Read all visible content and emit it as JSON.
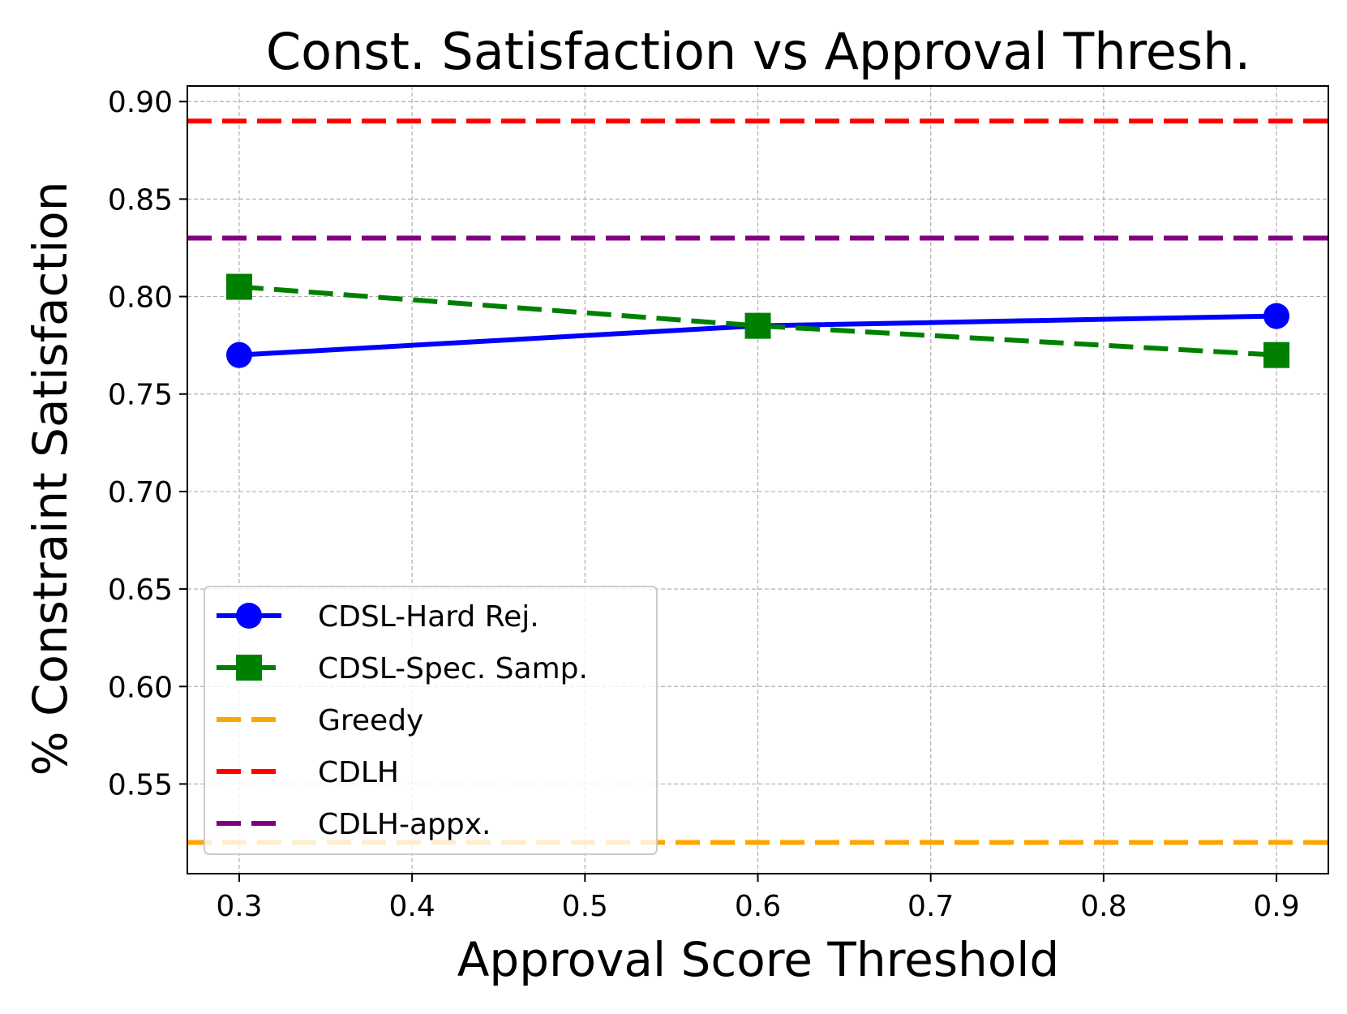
{
  "chart_data": {
    "type": "line",
    "title": "Const. Satisfaction vs Approval Thresh.",
    "xlabel": "Approval Score Threshold",
    "ylabel": "% Constraint Satisfaction",
    "xlim": [
      0.27,
      0.93
    ],
    "ylim": [
      0.504,
      0.908
    ],
    "x_ticks": [
      0.3,
      0.4,
      0.5,
      0.6,
      0.7,
      0.8,
      0.9
    ],
    "x_tick_labels": [
      "0.3",
      "0.4",
      "0.5",
      "0.6",
      "0.7",
      "0.8",
      "0.9"
    ],
    "y_ticks": [
      0.55,
      0.6,
      0.65,
      0.7,
      0.75,
      0.8,
      0.85,
      0.9
    ],
    "y_tick_labels": [
      "0.55",
      "0.60",
      "0.65",
      "0.70",
      "0.75",
      "0.80",
      "0.85",
      "0.90"
    ],
    "grid": true,
    "legend_position": "lower-left",
    "series": [
      {
        "name": "CDSL-Hard Rej.",
        "kind": "line",
        "x": [
          0.3,
          0.6,
          0.9
        ],
        "values": [
          0.77,
          0.785,
          0.79
        ],
        "color": "#0000ff",
        "linestyle": "solid",
        "marker": "circle"
      },
      {
        "name": "CDSL-Spec. Samp.",
        "kind": "line",
        "x": [
          0.3,
          0.6,
          0.9
        ],
        "values": [
          0.805,
          0.785,
          0.77
        ],
        "color": "#008000",
        "linestyle": "dashed",
        "marker": "square"
      },
      {
        "name": "Greedy",
        "kind": "hline",
        "value": 0.52,
        "color": "#ffa500",
        "linestyle": "dashed"
      },
      {
        "name": "CDLH",
        "kind": "hline",
        "value": 0.89,
        "color": "#ff0000",
        "linestyle": "dashed"
      },
      {
        "name": "CDLH-appx.",
        "kind": "hline",
        "value": 0.83,
        "color": "#800080",
        "linestyle": "dashed"
      }
    ]
  }
}
